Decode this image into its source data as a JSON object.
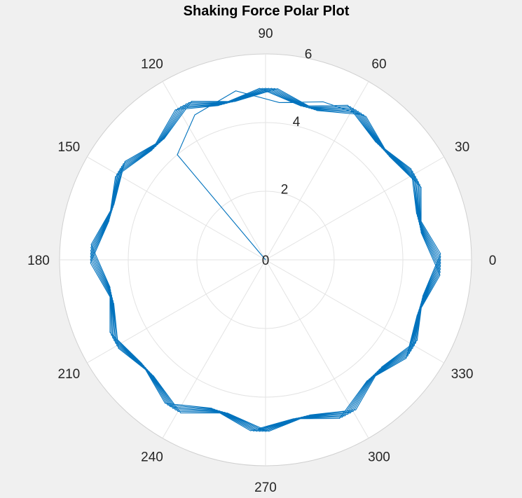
{
  "chart_data": {
    "type": "polar-line",
    "title": "Shaking Force Polar Plot",
    "theta_ticks": [
      "0",
      "30",
      "60",
      "90",
      "120",
      "150",
      "180",
      "210",
      "240",
      "270",
      "300",
      "330"
    ],
    "r_ticks": [
      "0",
      "2",
      "4",
      "6"
    ],
    "rlim": [
      0,
      6
    ],
    "grid": true,
    "series": [
      {
        "color": "#0072bd",
        "theta_deg": [
          130,
          116,
          100,
          85,
          70,
          55,
          40,
          25,
          10,
          355,
          340,
          325,
          310,
          295,
          280,
          265,
          250,
          235,
          220,
          205,
          190,
          175,
          160,
          145,
          130,
          115,
          101,
          86,
          71,
          56,
          41,
          26,
          11,
          356,
          341,
          326,
          311,
          296,
          281,
          266,
          251,
          236,
          221,
          206,
          191,
          176,
          161,
          146,
          131,
          116,
          102,
          87,
          72,
          57,
          42,
          27,
          12,
          357,
          342,
          327,
          312,
          297,
          282,
          267,
          252,
          237,
          222,
          207,
          192,
          177,
          162,
          147,
          132,
          117,
          103,
          88,
          73,
          58,
          43,
          28,
          13,
          358,
          343,
          328,
          313,
          298,
          283,
          268,
          253,
          238,
          223,
          208,
          193,
          178,
          163,
          148,
          133,
          118,
          104,
          89,
          74,
          59,
          44,
          29,
          14,
          359,
          344,
          329,
          314,
          299,
          284,
          269,
          254,
          239,
          224,
          209,
          194,
          179,
          164,
          149,
          134,
          119,
          105,
          90,
          75,
          60,
          45,
          30,
          15,
          0,
          345,
          330,
          315,
          300,
          285,
          270,
          255,
          240,
          225,
          210,
          195,
          180,
          165,
          150,
          135,
          120,
          106,
          91,
          76,
          61,
          46,
          31,
          16,
          1,
          346,
          331,
          316,
          301,
          286,
          271,
          256,
          241,
          226,
          211,
          196,
          181,
          166,
          151,
          136,
          121,
          107,
          92,
          77,
          62,
          47,
          32,
          17,
          2,
          347,
          332,
          317
        ],
        "r": [
          4.0,
          4.7,
          5.0,
          4.6,
          4.9,
          5.1,
          4.7,
          5.0,
          4.6,
          5.1,
          4.7,
          5.0,
          4.6,
          5.1,
          4.7,
          5.0,
          4.6,
          5.1,
          4.7,
          5.0,
          4.6,
          5.1,
          4.7,
          5.0,
          4.6,
          5.1,
          4.7,
          5.0,
          4.6,
          5.1,
          4.7,
          5.0,
          4.6,
          5.1,
          4.7,
          5.0,
          4.6,
          5.1,
          4.7,
          5.0,
          4.6,
          5.1,
          4.7,
          5.0,
          4.6,
          5.1,
          4.7,
          5.0,
          4.6,
          5.1,
          4.7,
          5.0,
          4.6,
          5.1,
          4.7,
          5.0,
          4.6,
          5.1,
          4.7,
          5.0,
          4.6,
          5.1,
          4.7,
          5.0,
          4.6,
          5.1,
          4.7,
          5.0,
          4.6,
          5.1,
          4.7,
          5.0,
          4.6,
          5.1,
          4.7,
          5.0,
          4.6,
          5.1,
          4.7,
          5.0,
          4.6,
          5.1,
          4.7,
          5.0,
          4.6,
          5.1,
          4.7,
          5.0,
          4.6,
          5.1,
          4.7,
          5.0,
          4.6,
          5.1,
          4.7,
          5.0,
          4.6,
          5.1,
          4.7,
          5.0,
          4.6,
          5.1,
          4.7,
          5.0,
          4.6,
          5.1,
          4.7,
          5.0,
          4.6,
          5.1,
          4.7,
          5.0,
          4.6,
          5.1,
          4.7,
          5.0,
          4.6,
          5.1,
          4.7,
          5.0,
          4.6,
          5.1,
          4.7,
          5.0,
          4.6,
          5.1,
          4.7,
          5.0,
          4.6,
          5.1,
          4.7,
          5.0,
          4.6,
          5.1,
          4.7,
          5.0,
          4.6,
          5.1,
          4.7,
          5.0,
          4.6,
          5.1,
          4.7,
          5.0,
          4.6,
          5.1,
          4.7,
          5.0,
          4.6,
          5.1,
          4.7,
          5.0,
          4.6,
          5.1,
          4.7,
          5.0,
          4.6,
          5.1,
          4.7,
          5.0,
          4.6,
          5.1,
          4.7,
          5.0,
          4.6,
          5.1,
          4.7,
          5.0,
          4.6,
          5.1,
          4.7,
          5.0,
          4.6,
          5.1,
          4.7,
          5.0,
          4.6,
          5.1,
          4.7,
          5.0,
          4.6,
          4.8
        ]
      }
    ]
  }
}
